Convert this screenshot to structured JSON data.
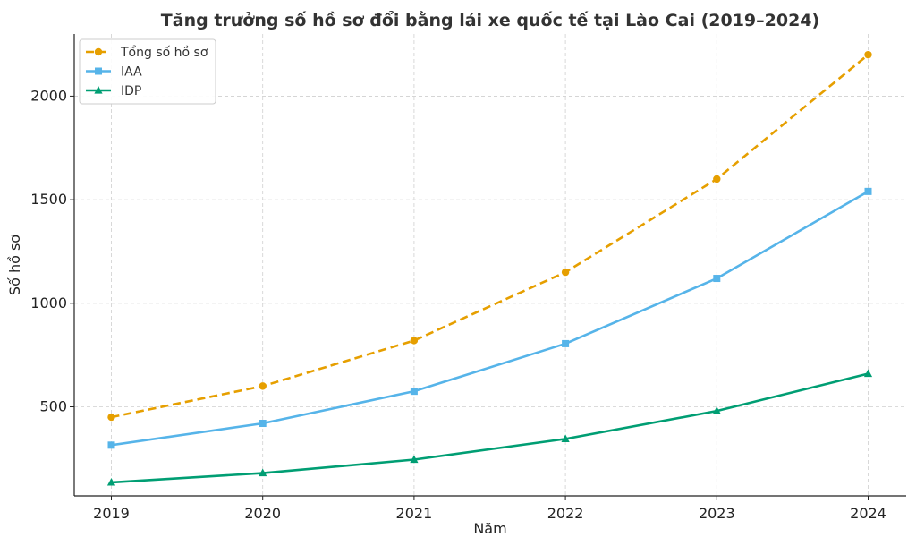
{
  "chart_data": {
    "type": "line",
    "title": "Tăng trưởng số hồ sơ đổi bằng lái xe quốc tế tại Lào Cai (2019–2024)",
    "xlabel": "Năm",
    "ylabel": "Số hồ sơ",
    "categories": [
      "2019",
      "2020",
      "2021",
      "2022",
      "2023",
      "2024"
    ],
    "y_ticks": [
      500,
      1000,
      1500,
      2000
    ],
    "y_tick_labels": [
      "500",
      "1000",
      "1500",
      "2000"
    ],
    "ylim": [
      70,
      2300
    ],
    "grid": true,
    "legend_position": "top-left",
    "series": [
      {
        "name": "Tổng số hồ sơ",
        "values": [
          450,
          600,
          820,
          1150,
          1600,
          2200
        ],
        "color": "#E69F00",
        "marker": "circle",
        "line_style": "dashed"
      },
      {
        "name": "IAA",
        "values": [
          315,
          420,
          575,
          805,
          1120,
          1540
        ],
        "color": "#56B4E9",
        "marker": "square",
        "line_style": "solid"
      },
      {
        "name": "IDP",
        "values": [
          135,
          180,
          245,
          345,
          480,
          660
        ],
        "color": "#009E73",
        "marker": "triangle",
        "line_style": "solid"
      }
    ]
  }
}
